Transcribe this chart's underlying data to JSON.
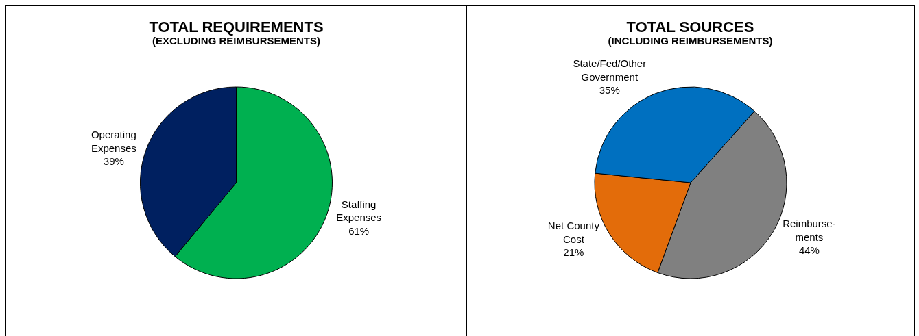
{
  "chart_data": [
    {
      "type": "pie",
      "title": "TOTAL REQUIREMENTS",
      "subtitle": "(EXCLUDING REIMBURSEMENTS)",
      "categories": [
        "Staffing\nExpenses",
        "Operating\nExpenses"
      ],
      "values": [
        61,
        39
      ],
      "value_labels": [
        "61%",
        "39%"
      ],
      "colors": [
        "#00b050",
        "#002060"
      ],
      "legend": false
    },
    {
      "type": "pie",
      "title": "TOTAL SOURCES",
      "subtitle": "(INCLUDING REIMBURSEMENTS)",
      "categories": [
        "Reimburse-\nments",
        "Net County\nCost",
        "State/Fed/Other\nGovernment"
      ],
      "values": [
        44,
        21,
        35
      ],
      "value_labels": [
        "44%",
        "21%",
        "35%"
      ],
      "colors": [
        "#808080",
        "#e36c0a",
        "#0070c0"
      ],
      "legend": false
    }
  ]
}
